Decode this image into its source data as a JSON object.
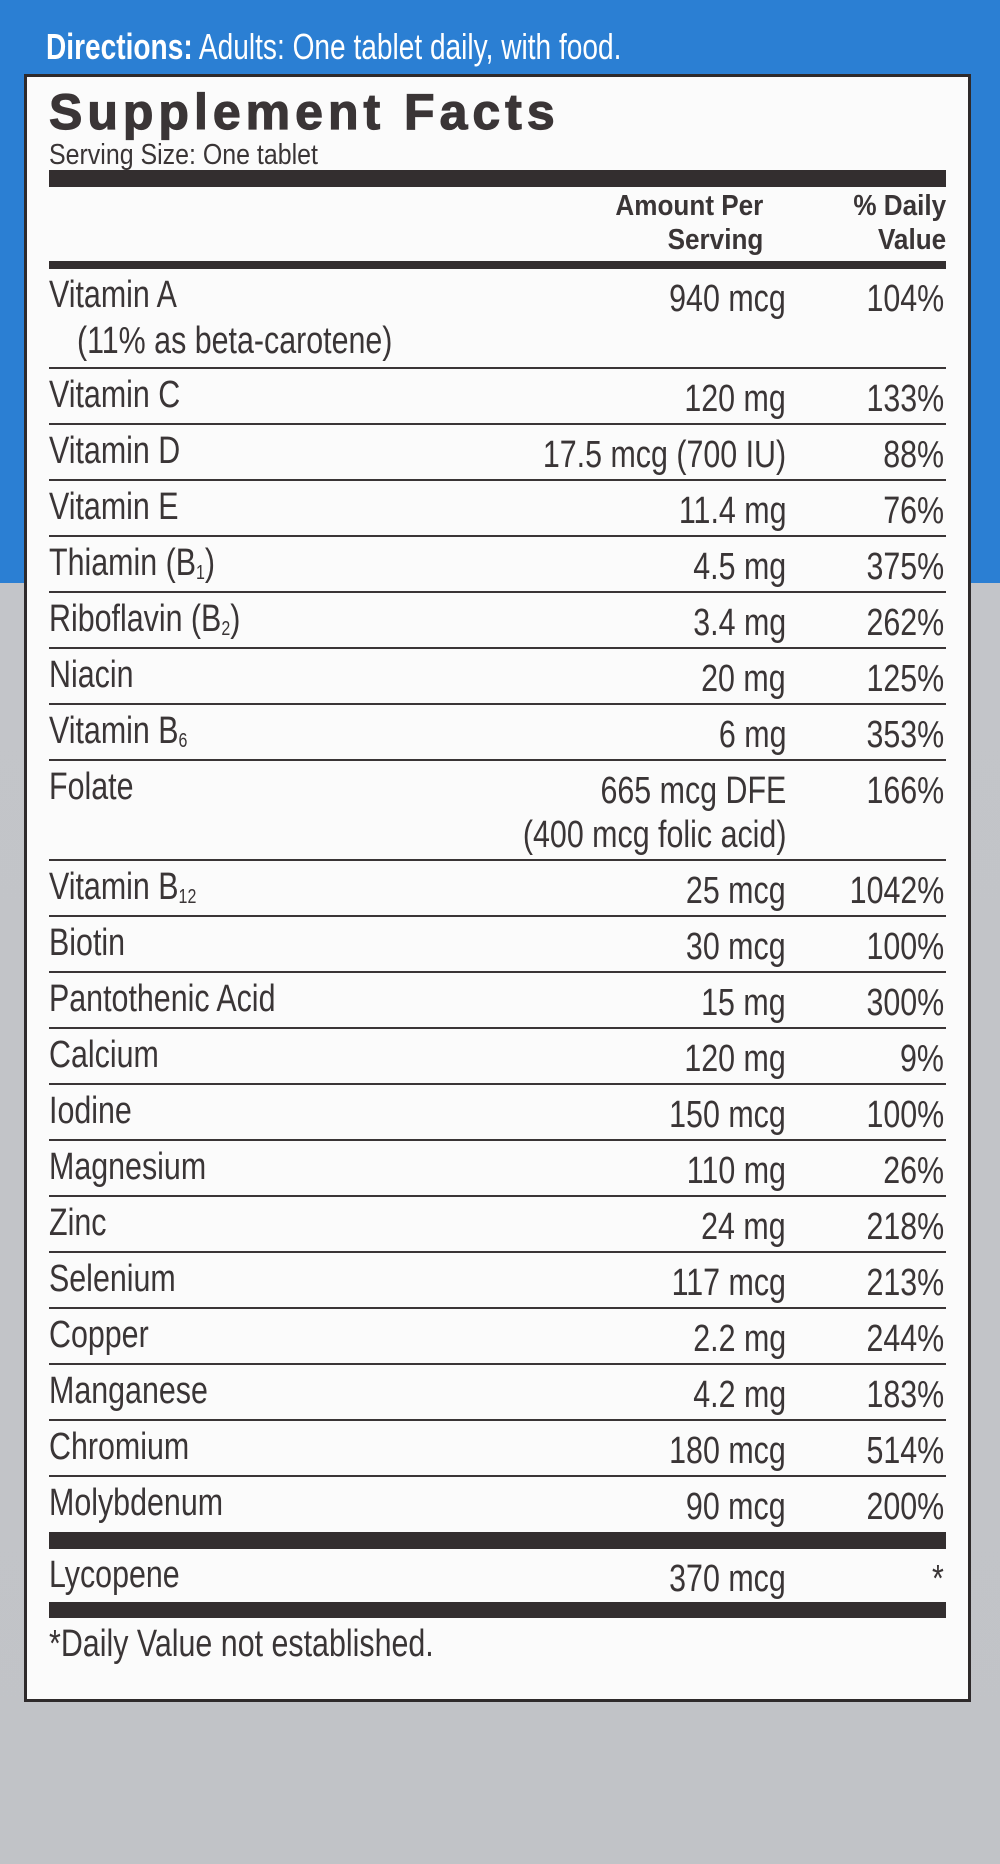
{
  "directions": {
    "label": "Directions:",
    "text": " Adults: One tablet daily, with food."
  },
  "label": {
    "title": "Supplement Facts",
    "serving_size": "Serving Size: One tablet",
    "col_amount": [
      "Amount Per",
      "Serving"
    ],
    "col_dv": [
      "% Daily",
      "Value"
    ],
    "nutrients": [
      {
        "name": "Vitamin A",
        "note": "(11% as beta-carotene)",
        "amount": "940 mcg",
        "dv": "104%"
      },
      {
        "name": "Vitamin C",
        "amount": "120 mg",
        "dv": "133%"
      },
      {
        "name": "Vitamin D",
        "amount": "17.5 mcg (700 IU)",
        "dv": "88%"
      },
      {
        "name": "Vitamin E",
        "amount": "11.4 mg",
        "dv": "76%"
      },
      {
        "name": "Thiamin (B",
        "sub": "1",
        "suffix": ")",
        "amount": "4.5 mg",
        "dv": "375%"
      },
      {
        "name": "Riboflavin (B",
        "sub": "2",
        "suffix": ")",
        "amount": "3.4 mg",
        "dv": "262%"
      },
      {
        "name": "Niacin",
        "amount": "20 mg",
        "dv": "125%"
      },
      {
        "name": "Vitamin B",
        "sub": "6",
        "amount": "6 mg",
        "dv": "353%"
      },
      {
        "name": "Folate",
        "amount": "665 mcg DFE",
        "amount_note": "(400 mcg folic acid)",
        "dv": "166%"
      },
      {
        "name": "Vitamin B",
        "sub": "12",
        "amount": "25 mcg",
        "dv": "1042%"
      },
      {
        "name": "Biotin",
        "amount": "30 mcg",
        "dv": "100%"
      },
      {
        "name": "Pantothenic Acid",
        "amount": "15 mg",
        "dv": "300%"
      },
      {
        "name": "Calcium",
        "amount": "120 mg",
        "dv": "9%"
      },
      {
        "name": "Iodine",
        "amount": "150 mcg",
        "dv": "100%"
      },
      {
        "name": "Magnesium",
        "amount": "110 mg",
        "dv": "26%"
      },
      {
        "name": "Zinc",
        "amount": "24 mg",
        "dv": "218%"
      },
      {
        "name": "Selenium",
        "amount": "117 mcg",
        "dv": "213%"
      },
      {
        "name": "Copper",
        "amount": "2.2 mg",
        "dv": "244%"
      },
      {
        "name": "Manganese",
        "amount": "4.2 mg",
        "dv": "183%"
      },
      {
        "name": "Chromium",
        "amount": "180 mcg",
        "dv": "514%"
      },
      {
        "name": "Molybdenum",
        "amount": "90 mcg",
        "dv": "200%"
      }
    ],
    "other": [
      {
        "name": "Lycopene",
        "amount": "370 mcg",
        "dv": "*"
      }
    ],
    "footnote": "*Daily Value not established."
  },
  "colors": {
    "blue_band": "#2b7fd3",
    "gray_background": "#c3c5c9",
    "ink": "#3a3536"
  }
}
